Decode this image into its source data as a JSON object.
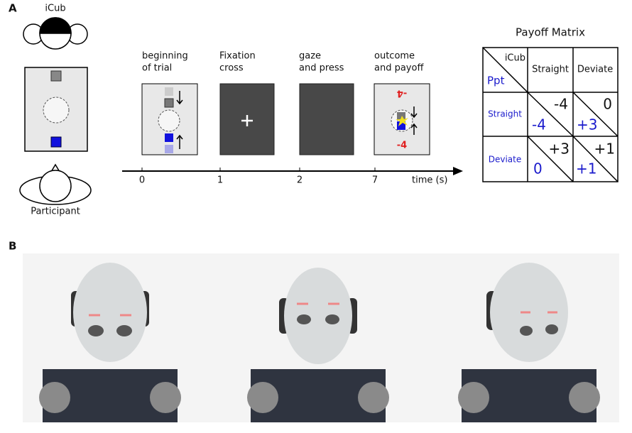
{
  "panel_a": {
    "label": "A",
    "icub_label": "iCub",
    "participant_label": "Participant",
    "stages": [
      [
        "beginning",
        "of trial"
      ],
      [
        "Fixation",
        "cross"
      ],
      [
        "gaze",
        "and press"
      ],
      [
        "outcome",
        "and payoff"
      ]
    ],
    "timeline": {
      "ticks": [
        "0",
        "1",
        "2",
        "7"
      ],
      "axis_label": "time (s)"
    },
    "outcome_text": "-4",
    "payoff_matrix": {
      "title": "Payoff Matrix",
      "corner_top": "iCub",
      "corner_bottom": "Ppt",
      "columns": [
        "Straight",
        "Deviate"
      ],
      "rows": [
        "Straight",
        "Deviate"
      ],
      "cells": [
        [
          {
            "icub": "-4",
            "ppt": "-4"
          },
          {
            "icub": "0",
            "ppt": "+3"
          }
        ],
        [
          {
            "icub": "+3",
            "ppt": "0"
          },
          {
            "icub": "+1",
            "ppt": "+1"
          }
        ]
      ]
    }
  },
  "panel_b": {
    "label": "B"
  }
}
